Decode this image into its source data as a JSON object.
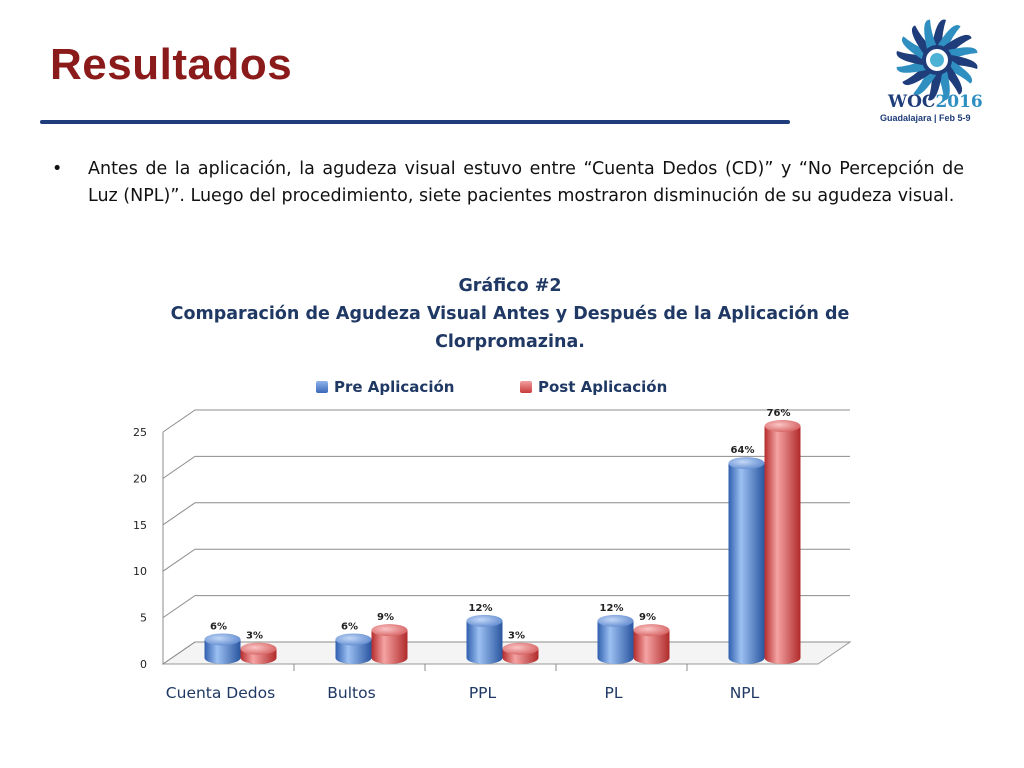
{
  "slide": {
    "title": "Resultados",
    "bullet": "Antes de la aplicación, la agudeza visual estuvo entre “Cuenta Dedos (CD)” y “No Percepción de Luz (NPL)”. Luego del procedimiento, siete pacientes mostraron disminución de su agudeza visual."
  },
  "logo": {
    "text": "WOC2016",
    "subtitle": "Guadalajara | Feb 5-9",
    "icon": "sunburst-logo-icon"
  },
  "colors": {
    "title": "#8b1a1a",
    "rule": "#1f3d7a",
    "pre": "#4a7fd1",
    "post": "#e05a5a",
    "text_navy": "#1f3864"
  },
  "chart_data": {
    "type": "bar",
    "title_line1": "Gráfico #2",
    "title_line2": "Comparación de Agudeza Visual Antes y Después de la Aplicación de Clorpromazina.",
    "categories": [
      "Cuenta Dedos",
      "Bultos",
      "PPL",
      "PL",
      "NPL"
    ],
    "series": [
      {
        "name": "Pre Aplicación",
        "values": [
          2,
          2,
          4,
          4,
          21
        ],
        "labels": [
          "6%",
          "6%",
          "12%",
          "12%",
          "64%"
        ]
      },
      {
        "name": "Post Aplicación",
        "values": [
          1,
          3,
          1,
          3,
          25
        ],
        "labels": [
          "3%",
          "9%",
          "3%",
          "9%",
          "76%"
        ]
      }
    ],
    "ylim": [
      0,
      25
    ],
    "yticks": [
      0,
      5,
      10,
      15,
      20,
      25
    ],
    "grid": true,
    "legend": "top"
  }
}
